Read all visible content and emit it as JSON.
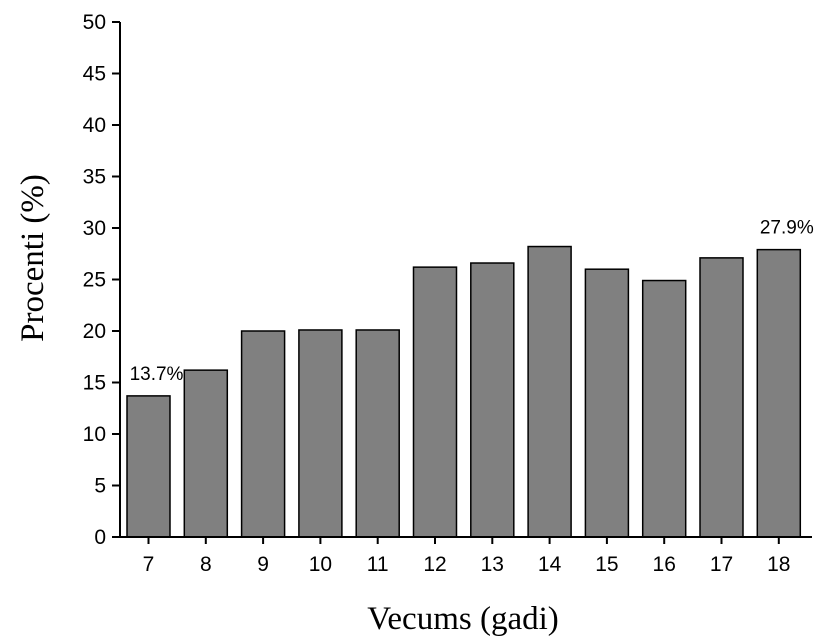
{
  "chart_data": {
    "type": "bar",
    "categories": [
      "7",
      "8",
      "9",
      "10",
      "11",
      "12",
      "13",
      "14",
      "15",
      "16",
      "17",
      "18"
    ],
    "values": [
      13.7,
      16.2,
      20.0,
      20.1,
      20.1,
      26.2,
      26.6,
      28.2,
      26.0,
      24.9,
      27.1,
      27.9
    ],
    "xlabel": "Vecums (gadi)",
    "ylabel": "Procenti (%)",
    "ylim": [
      0,
      50
    ],
    "yticks": [
      0,
      5,
      10,
      15,
      20,
      25,
      30,
      35,
      40,
      45,
      50
    ],
    "grid": false,
    "bar_color": "#808080",
    "annotations": [
      {
        "category": "7",
        "text": "13.7%"
      },
      {
        "category": "18",
        "text": "27.9%"
      }
    ]
  }
}
